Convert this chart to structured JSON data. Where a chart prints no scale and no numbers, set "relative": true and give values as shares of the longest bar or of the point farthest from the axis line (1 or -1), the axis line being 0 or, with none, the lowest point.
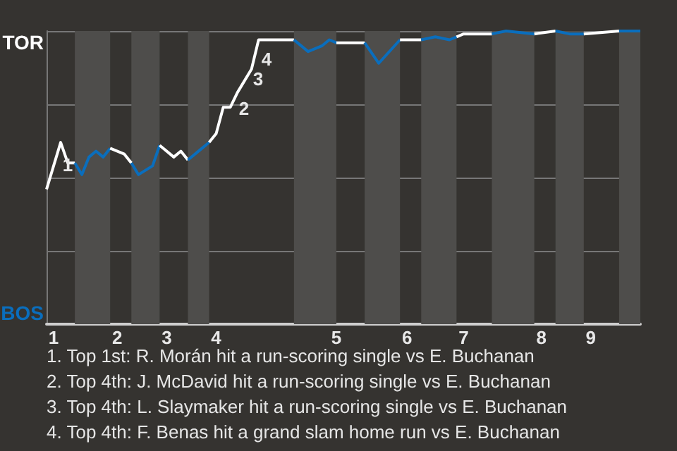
{
  "chart_data": {
    "type": "line",
    "marker": "none",
    "grid": "y",
    "relative": true,
    "categories": [
      null,
      "1",
      null,
      null,
      null,
      null,
      null,
      null,
      null,
      null,
      "2",
      null,
      null,
      null,
      null,
      null,
      null,
      "3",
      null,
      null,
      null,
      null,
      null,
      null,
      "4",
      null,
      null,
      null,
      null,
      null,
      null,
      null,
      null,
      null,
      null,
      null,
      null,
      null,
      null,
      null,
      null,
      "5",
      null,
      null,
      null,
      null,
      null,
      null,
      null,
      null,
      null,
      "6",
      null,
      null,
      null,
      null,
      null,
      null,
      null,
      "7",
      null,
      null,
      null,
      null,
      null,
      null,
      null,
      null,
      null,
      null,
      "8",
      null,
      null,
      null,
      null,
      null,
      null,
      "9",
      null,
      null,
      null,
      null,
      null,
      null,
      null
    ],
    "series": [
      {
        "color": "#ffffff",
        "values": [
          0.46,
          null,
          0.62,
          0.55,
          0.55,
          null,
          null,
          null,
          null,
          null,
          null,
          null,
          null,
          null,
          null,
          null,
          null,
          null,
          null,
          null,
          null,
          null,
          null,
          null,
          null,
          null,
          null,
          null,
          null,
          null,
          null,
          null,
          null,
          null,
          null,
          null,
          null,
          null,
          null,
          null,
          null,
          null,
          null,
          null,
          null,
          null,
          null,
          null,
          null,
          null,
          null,
          null,
          null,
          null,
          null,
          null,
          null,
          null,
          null,
          null,
          null,
          null,
          null,
          null,
          null,
          null,
          null,
          null,
          null,
          null,
          null,
          null,
          null,
          null,
          null,
          null,
          null,
          null,
          null,
          null,
          null,
          null,
          null,
          null,
          null
        ]
      },
      {
        "color": "#0a6ebd",
        "values": [
          null,
          null,
          null,
          null,
          0.55,
          0.51,
          0.57,
          0.59,
          0.57,
          0.6,
          null,
          null,
          null,
          null,
          null,
          null,
          null,
          null,
          null,
          null,
          null,
          null,
          null,
          null,
          null,
          null,
          null,
          null,
          null,
          null,
          null,
          null,
          null,
          null,
          null,
          null,
          null,
          null,
          null,
          null,
          null,
          null,
          null,
          null,
          null,
          null,
          null,
          null,
          null,
          null,
          null,
          null,
          null,
          null,
          null,
          null,
          null,
          null,
          null,
          null,
          null,
          null,
          null,
          null,
          null,
          null,
          null,
          null,
          null,
          null,
          null,
          null,
          null,
          null,
          null,
          null,
          null,
          null,
          null,
          null,
          null,
          null,
          null,
          null,
          null
        ]
      },
      {
        "color": "#ffffff",
        "values": [
          null,
          null,
          null,
          null,
          null,
          null,
          null,
          null,
          null,
          0.6,
          null,
          0.58,
          0.55,
          null,
          null,
          null,
          null,
          null,
          null,
          null,
          null,
          null,
          null,
          null,
          null,
          null,
          null,
          null,
          null,
          null,
          null,
          null,
          null,
          null,
          null,
          null,
          null,
          null,
          null,
          null,
          null,
          null,
          null,
          null,
          null,
          null,
          null,
          null,
          null,
          null,
          null,
          null,
          null,
          null,
          null,
          null,
          null,
          null,
          null,
          null,
          null,
          null,
          null,
          null,
          null,
          null,
          null,
          null,
          null,
          null,
          null,
          null,
          null,
          null,
          null,
          null,
          null,
          null,
          null,
          null,
          null,
          null,
          null,
          null,
          null
        ]
      },
      {
        "color": "#0a6ebd",
        "values": [
          null,
          null,
          null,
          null,
          null,
          null,
          null,
          null,
          null,
          null,
          null,
          null,
          0.55,
          0.51,
          null,
          0.54,
          0.61,
          null,
          null,
          null,
          null,
          null,
          null,
          null,
          null,
          null,
          null,
          null,
          null,
          null,
          null,
          null,
          null,
          null,
          null,
          null,
          null,
          null,
          null,
          null,
          null,
          null,
          null,
          null,
          null,
          null,
          null,
          null,
          null,
          null,
          null,
          null,
          null,
          null,
          null,
          null,
          null,
          null,
          null,
          null,
          null,
          null,
          null,
          null,
          null,
          null,
          null,
          null,
          null,
          null,
          null,
          null,
          null,
          null,
          null,
          null,
          null,
          null,
          null,
          null,
          null,
          null,
          null,
          null,
          null
        ]
      },
      {
        "color": "#ffffff",
        "values": [
          null,
          null,
          null,
          null,
          null,
          null,
          null,
          null,
          null,
          null,
          null,
          null,
          null,
          null,
          null,
          null,
          0.61,
          null,
          0.57,
          0.59,
          0.56,
          null,
          null,
          null,
          null,
          null,
          null,
          null,
          null,
          null,
          null,
          null,
          null,
          null,
          null,
          null,
          null,
          null,
          null,
          null,
          null,
          null,
          null,
          null,
          null,
          null,
          null,
          null,
          null,
          null,
          null,
          null,
          null,
          null,
          null,
          null,
          null,
          null,
          null,
          null,
          null,
          null,
          null,
          null,
          null,
          null,
          null,
          null,
          null,
          null,
          null,
          null,
          null,
          null,
          null,
          null,
          null,
          null,
          null,
          null,
          null,
          null,
          null,
          null,
          null
        ]
      },
      {
        "color": "#0a6ebd",
        "values": [
          null,
          null,
          null,
          null,
          null,
          null,
          null,
          null,
          null,
          null,
          null,
          null,
          null,
          null,
          null,
          null,
          null,
          null,
          null,
          null,
          0.56,
          null,
          0.6,
          0.62,
          null,
          null,
          null,
          null,
          null,
          null,
          null,
          null,
          null,
          null,
          null,
          null,
          null,
          null,
          null,
          null,
          null,
          null,
          null,
          null,
          null,
          null,
          null,
          null,
          null,
          null,
          null,
          null,
          null,
          null,
          null,
          null,
          null,
          null,
          null,
          null,
          null,
          null,
          null,
          null,
          null,
          null,
          null,
          null,
          null,
          null,
          null,
          null,
          null,
          null,
          null,
          null,
          null,
          null,
          null,
          null,
          null,
          null,
          null,
          null,
          null
        ]
      },
      {
        "color": "#ffffff",
        "values": [
          null,
          null,
          null,
          null,
          null,
          null,
          null,
          null,
          null,
          null,
          null,
          null,
          null,
          null,
          null,
          null,
          null,
          null,
          null,
          null,
          null,
          null,
          null,
          0.62,
          0.65,
          0.74,
          0.74,
          0.79,
          null,
          0.87,
          0.97,
          0.97,
          null,
          0.97,
          null,
          0.97,
          null,
          null,
          null,
          null,
          null,
          null,
          null,
          null,
          null,
          null,
          null,
          null,
          null,
          null,
          null,
          null,
          null,
          null,
          null,
          null,
          null,
          null,
          null,
          null,
          null,
          null,
          null,
          null,
          null,
          null,
          null,
          null,
          null,
          null,
          null,
          null,
          null,
          null,
          null,
          null,
          null,
          null,
          null,
          null,
          null,
          null,
          null,
          null,
          null
        ]
      },
      {
        "color": "#0a6ebd",
        "values": [
          null,
          null,
          null,
          null,
          null,
          null,
          null,
          null,
          null,
          null,
          null,
          null,
          null,
          null,
          null,
          null,
          null,
          null,
          null,
          null,
          null,
          null,
          null,
          null,
          null,
          null,
          null,
          null,
          null,
          null,
          null,
          null,
          null,
          null,
          null,
          0.97,
          null,
          0.93,
          null,
          0.95,
          0.97,
          0.96,
          null,
          null,
          null,
          null,
          null,
          null,
          null,
          null,
          null,
          null,
          null,
          null,
          null,
          null,
          null,
          null,
          null,
          null,
          null,
          null,
          null,
          null,
          null,
          null,
          null,
          null,
          null,
          null,
          null,
          null,
          null,
          null,
          null,
          null,
          null,
          null,
          null,
          null,
          null,
          null,
          null,
          null,
          null
        ]
      },
      {
        "color": "#ffffff",
        "values": [
          null,
          null,
          null,
          null,
          null,
          null,
          null,
          null,
          null,
          null,
          null,
          null,
          null,
          null,
          null,
          null,
          null,
          null,
          null,
          null,
          null,
          null,
          null,
          null,
          null,
          null,
          null,
          null,
          null,
          null,
          null,
          null,
          null,
          null,
          null,
          null,
          null,
          null,
          null,
          null,
          null,
          0.96,
          null,
          null,
          null,
          0.96,
          null,
          null,
          null,
          null,
          null,
          null,
          null,
          null,
          null,
          null,
          null,
          null,
          null,
          null,
          null,
          null,
          null,
          null,
          null,
          null,
          null,
          null,
          null,
          null,
          null,
          null,
          null,
          null,
          null,
          null,
          null,
          null,
          null,
          null,
          null,
          null,
          null,
          null,
          null
        ]
      },
      {
        "color": "#0a6ebd",
        "values": [
          null,
          null,
          null,
          null,
          null,
          null,
          null,
          null,
          null,
          null,
          null,
          null,
          null,
          null,
          null,
          null,
          null,
          null,
          null,
          null,
          null,
          null,
          null,
          null,
          null,
          null,
          null,
          null,
          null,
          null,
          null,
          null,
          null,
          null,
          null,
          null,
          null,
          null,
          null,
          null,
          null,
          null,
          null,
          null,
          null,
          0.96,
          null,
          0.89,
          null,
          null,
          0.97,
          null,
          null,
          null,
          null,
          null,
          null,
          null,
          null,
          null,
          null,
          null,
          null,
          null,
          null,
          null,
          null,
          null,
          null,
          null,
          null,
          null,
          null,
          null,
          null,
          null,
          null,
          null,
          null,
          null,
          null,
          null,
          null,
          null,
          null
        ]
      },
      {
        "color": "#ffffff",
        "values": [
          null,
          null,
          null,
          null,
          null,
          null,
          null,
          null,
          null,
          null,
          null,
          null,
          null,
          null,
          null,
          null,
          null,
          null,
          null,
          null,
          null,
          null,
          null,
          null,
          null,
          null,
          null,
          null,
          null,
          null,
          null,
          null,
          null,
          null,
          null,
          null,
          null,
          null,
          null,
          null,
          null,
          null,
          null,
          null,
          null,
          null,
          null,
          null,
          null,
          null,
          0.97,
          null,
          0.97,
          0.97,
          null,
          null,
          null,
          null,
          null,
          null,
          null,
          null,
          null,
          null,
          null,
          null,
          null,
          null,
          null,
          null,
          null,
          null,
          null,
          null,
          null,
          null,
          null,
          null,
          null,
          null,
          null,
          null,
          null,
          null,
          null
        ]
      },
      {
        "color": "#0a6ebd",
        "values": [
          null,
          null,
          null,
          null,
          null,
          null,
          null,
          null,
          null,
          null,
          null,
          null,
          null,
          null,
          null,
          null,
          null,
          null,
          null,
          null,
          null,
          null,
          null,
          null,
          null,
          null,
          null,
          null,
          null,
          null,
          null,
          null,
          null,
          null,
          null,
          null,
          null,
          null,
          null,
          null,
          null,
          null,
          null,
          null,
          null,
          null,
          null,
          null,
          null,
          null,
          null,
          null,
          null,
          0.97,
          null,
          0.98,
          null,
          0.97,
          0.98,
          null,
          null,
          null,
          null,
          null,
          null,
          null,
          null,
          null,
          null,
          null,
          null,
          null,
          null,
          null,
          null,
          null,
          null,
          null,
          null,
          null,
          null,
          null,
          null,
          null,
          null
        ]
      },
      {
        "color": "#ffffff",
        "values": [
          null,
          null,
          null,
          null,
          null,
          null,
          null,
          null,
          null,
          null,
          null,
          null,
          null,
          null,
          null,
          null,
          null,
          null,
          null,
          null,
          null,
          null,
          null,
          null,
          null,
          null,
          null,
          null,
          null,
          null,
          null,
          null,
          null,
          null,
          null,
          null,
          null,
          null,
          null,
          null,
          null,
          null,
          null,
          null,
          null,
          null,
          null,
          null,
          null,
          null,
          null,
          null,
          null,
          null,
          null,
          null,
          null,
          null,
          0.98,
          0.99,
          null,
          null,
          null,
          0.99,
          null,
          null,
          null,
          null,
          null,
          null,
          null,
          null,
          null,
          null,
          null,
          null,
          null,
          null,
          null,
          null,
          null,
          null,
          null,
          null,
          null
        ]
      },
      {
        "color": "#0a6ebd",
        "values": [
          null,
          null,
          null,
          null,
          null,
          null,
          null,
          null,
          null,
          null,
          null,
          null,
          null,
          null,
          null,
          null,
          null,
          null,
          null,
          null,
          null,
          null,
          null,
          null,
          null,
          null,
          null,
          null,
          null,
          null,
          null,
          null,
          null,
          null,
          null,
          null,
          null,
          null,
          null,
          null,
          null,
          null,
          null,
          null,
          null,
          null,
          null,
          null,
          null,
          null,
          null,
          null,
          null,
          null,
          null,
          null,
          null,
          null,
          null,
          null,
          null,
          null,
          null,
          0.99,
          null,
          1,
          null,
          null,
          null,
          0.99,
          null,
          null,
          null,
          null,
          null,
          null,
          null,
          null,
          null,
          null,
          null,
          null,
          null,
          null,
          null
        ]
      },
      {
        "color": "#ffffff",
        "values": [
          null,
          null,
          null,
          null,
          null,
          null,
          null,
          null,
          null,
          null,
          null,
          null,
          null,
          null,
          null,
          null,
          null,
          null,
          null,
          null,
          null,
          null,
          null,
          null,
          null,
          null,
          null,
          null,
          null,
          null,
          null,
          null,
          null,
          null,
          null,
          null,
          null,
          null,
          null,
          null,
          null,
          null,
          null,
          null,
          null,
          null,
          null,
          null,
          null,
          null,
          null,
          null,
          null,
          null,
          null,
          null,
          null,
          null,
          null,
          null,
          null,
          null,
          null,
          null,
          null,
          null,
          null,
          null,
          null,
          0.99,
          null,
          null,
          1,
          null,
          null,
          null,
          null,
          null,
          null,
          null,
          null,
          null,
          null,
          null,
          null
        ]
      },
      {
        "color": "#0a6ebd",
        "values": [
          null,
          null,
          null,
          null,
          null,
          null,
          null,
          null,
          null,
          null,
          null,
          null,
          null,
          null,
          null,
          null,
          null,
          null,
          null,
          null,
          null,
          null,
          null,
          null,
          null,
          null,
          null,
          null,
          null,
          null,
          null,
          null,
          null,
          null,
          null,
          null,
          null,
          null,
          null,
          null,
          null,
          null,
          null,
          null,
          null,
          null,
          null,
          null,
          null,
          null,
          null,
          null,
          null,
          null,
          null,
          null,
          null,
          null,
          null,
          null,
          null,
          null,
          null,
          null,
          null,
          null,
          null,
          null,
          null,
          null,
          null,
          null,
          1,
          null,
          0.99,
          null,
          0.99,
          null,
          null,
          null,
          null,
          null,
          null,
          null,
          null
        ]
      },
      {
        "color": "#ffffff",
        "values": [
          null,
          null,
          null,
          null,
          null,
          null,
          null,
          null,
          null,
          null,
          null,
          null,
          null,
          null,
          null,
          null,
          null,
          null,
          null,
          null,
          null,
          null,
          null,
          null,
          null,
          null,
          null,
          null,
          null,
          null,
          null,
          null,
          null,
          null,
          null,
          null,
          null,
          null,
          null,
          null,
          null,
          null,
          null,
          null,
          null,
          null,
          null,
          null,
          null,
          null,
          null,
          null,
          null,
          null,
          null,
          null,
          null,
          null,
          null,
          null,
          null,
          null,
          null,
          null,
          null,
          null,
          null,
          null,
          null,
          null,
          null,
          null,
          null,
          null,
          null,
          null,
          0.99,
          null,
          null,
          null,
          null,
          1,
          null,
          null,
          null
        ]
      },
      {
        "color": "#0a6ebd",
        "values": [
          null,
          null,
          null,
          null,
          null,
          null,
          null,
          null,
          null,
          null,
          null,
          null,
          null,
          null,
          null,
          null,
          null,
          null,
          null,
          null,
          null,
          null,
          null,
          null,
          null,
          null,
          null,
          null,
          null,
          null,
          null,
          null,
          null,
          null,
          null,
          null,
          null,
          null,
          null,
          null,
          null,
          null,
          null,
          null,
          null,
          null,
          null,
          null,
          null,
          null,
          null,
          null,
          null,
          null,
          null,
          null,
          null,
          null,
          null,
          null,
          null,
          null,
          null,
          null,
          null,
          null,
          null,
          null,
          null,
          null,
          null,
          null,
          null,
          null,
          null,
          null,
          null,
          null,
          null,
          null,
          null,
          1,
          null,
          null,
          1
        ]
      }
    ],
    "annotations": [
      "TOR",
      "BOS",
      "1",
      "2",
      "3",
      "4",
      "1. Top 1st: R. Morán hit a run-scoring single vs E. Buchanan",
      "2. Top 4th: J. McDavid hit a run-scoring single vs E. Buchanan",
      "3. Top 4th: L. Slaymaker hit a run-scoring single vs E. Buchanan",
      "4. Top 4th: F. Benas hit a grand slam home run vs E. Buchanan"
    ]
  }
}
